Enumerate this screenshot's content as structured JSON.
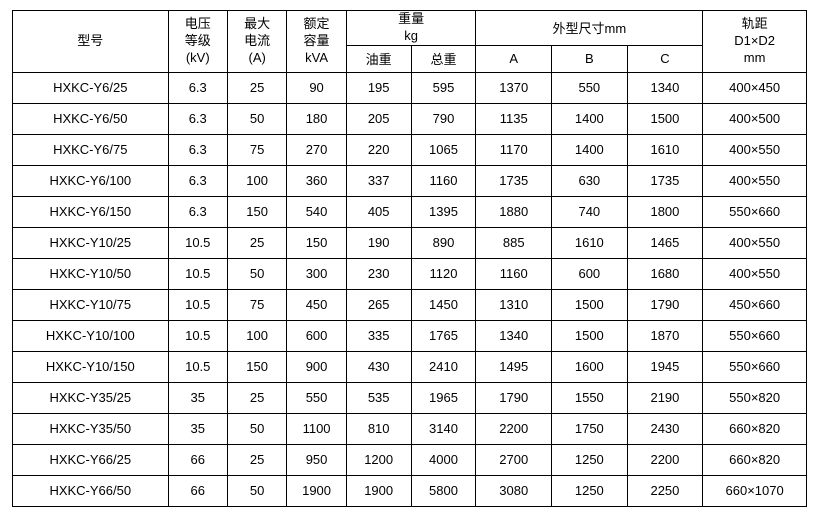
{
  "table": {
    "columns": {
      "model": {
        "label": "型号"
      },
      "voltage": {
        "label_line1": "电压",
        "label_line2": "等级",
        "unit": "(kV)"
      },
      "current": {
        "label_line1": "最大",
        "label_line2": "电流",
        "unit": "(A)"
      },
      "capacity": {
        "label_line1": "额定",
        "label_line2": "容量",
        "unit": "kVA"
      },
      "weight": {
        "group": "重量",
        "group_unit": "kg",
        "oil": "油重",
        "total": "总重"
      },
      "dims": {
        "group": "外型尺寸mm",
        "a": "A",
        "b": "B",
        "c": "C"
      },
      "track": {
        "label_line1": "轨距",
        "label_line2": "D1×D2",
        "unit": "mm"
      }
    },
    "colors": {
      "border": "#000000",
      "background": "#ffffff",
      "text": "#000000"
    },
    "font_size_pt": 13,
    "rows": [
      {
        "model": "HXKC-Y6/25",
        "kv": "6.3",
        "a": "25",
        "kva": "90",
        "oil": "195",
        "total": "595",
        "A": "1370",
        "B": "550",
        "C": "1340",
        "d": "400×450"
      },
      {
        "model": "HXKC-Y6/50",
        "kv": "6.3",
        "a": "50",
        "kva": "180",
        "oil": "205",
        "total": "790",
        "A": "1135",
        "B": "1400",
        "C": "1500",
        "d": "400×500"
      },
      {
        "model": "HXKC-Y6/75",
        "kv": "6.3",
        "a": "75",
        "kva": "270",
        "oil": "220",
        "total": "1065",
        "A": "1170",
        "B": "1400",
        "C": "1610",
        "d": "400×550"
      },
      {
        "model": "HXKC-Y6/100",
        "kv": "6.3",
        "a": "100",
        "kva": "360",
        "oil": "337",
        "total": "1160",
        "A": "1735",
        "B": "630",
        "C": "1735",
        "d": "400×550"
      },
      {
        "model": "HXKC-Y6/150",
        "kv": "6.3",
        "a": "150",
        "kva": "540",
        "oil": "405",
        "total": "1395",
        "A": "1880",
        "B": "740",
        "C": "1800",
        "d": "550×660"
      },
      {
        "model": "HXKC-Y10/25",
        "kv": "10.5",
        "a": "25",
        "kva": "150",
        "oil": "190",
        "total": "890",
        "A": "885",
        "B": "1610",
        "C": "1465",
        "d": "400×550"
      },
      {
        "model": "HXKC-Y10/50",
        "kv": "10.5",
        "a": "50",
        "kva": "300",
        "oil": "230",
        "total": "1120",
        "A": "1160",
        "B": "600",
        "C": "1680",
        "d": "400×550"
      },
      {
        "model": "HXKC-Y10/75",
        "kv": "10.5",
        "a": "75",
        "kva": "450",
        "oil": "265",
        "total": "1450",
        "A": "1310",
        "B": "1500",
        "C": "1790",
        "d": "450×660"
      },
      {
        "model": "HXKC-Y10/100",
        "kv": "10.5",
        "a": "100",
        "kva": "600",
        "oil": "335",
        "total": "1765",
        "A": "1340",
        "B": "1500",
        "C": "1870",
        "d": "550×660"
      },
      {
        "model": "HXKC-Y10/150",
        "kv": "10.5",
        "a": "150",
        "kva": "900",
        "oil": "430",
        "total": "2410",
        "A": "1495",
        "B": "1600",
        "C": "1945",
        "d": "550×660"
      },
      {
        "model": "HXKC-Y35/25",
        "kv": "35",
        "a": "25",
        "kva": "550",
        "oil": "535",
        "total": "1965",
        "A": "1790",
        "B": "1550",
        "C": "2190",
        "d": "550×820"
      },
      {
        "model": "HXKC-Y35/50",
        "kv": "35",
        "a": "50",
        "kva": "1100",
        "oil": "810",
        "total": "3140",
        "A": "2200",
        "B": "1750",
        "C": "2430",
        "d": "660×820"
      },
      {
        "model": "HXKC-Y66/25",
        "kv": "66",
        "a": "25",
        "kva": "950",
        "oil": "1200",
        "total": "4000",
        "A": "2700",
        "B": "1250",
        "C": "2200",
        "d": "660×820"
      },
      {
        "model": "HXKC-Y66/50",
        "kv": "66",
        "a": "50",
        "kva": "1900",
        "oil": "1900",
        "total": "5800",
        "A": "3080",
        "B": "1250",
        "C": "2250",
        "d": "660×1070"
      }
    ]
  }
}
